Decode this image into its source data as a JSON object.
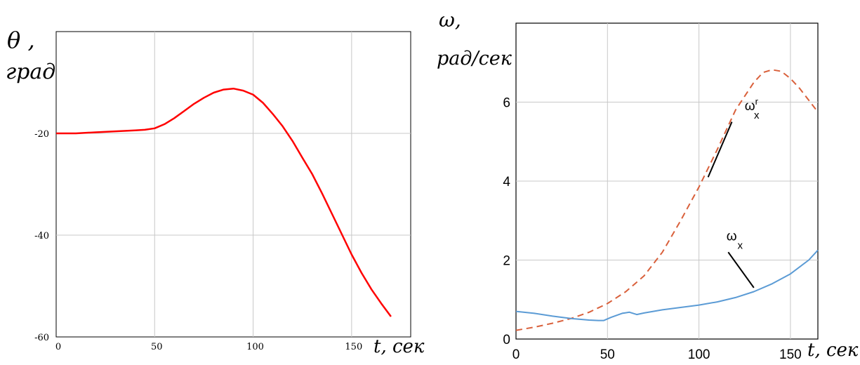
{
  "chart_data": [
    {
      "type": "line",
      "title": "",
      "ylabel_symbol": "θ ,",
      "ylabel_unit": "град",
      "xlabel": "t, сек",
      "xlim": [
        0,
        180
      ],
      "ylim": [
        -60,
        0
      ],
      "xticks": [
        0,
        50,
        100,
        150
      ],
      "xtick_labels": [
        "0",
        "50",
        "100",
        "150"
      ],
      "yticks": [
        -20,
        -40,
        -60
      ],
      "ytick_labels": [
        "-20",
        "-40",
        "-60"
      ],
      "grid": true,
      "legend": "none",
      "series": [
        {
          "color": "#ff0000",
          "style": "solid",
          "x": [
            0,
            10,
            20,
            30,
            40,
            45,
            50,
            55,
            60,
            65,
            70,
            75,
            80,
            85,
            90,
            95,
            100,
            105,
            110,
            115,
            120,
            125,
            130,
            135,
            140,
            145,
            150,
            155,
            160,
            165,
            170
          ],
          "y": [
            -20,
            -20,
            -19.8,
            -19.6,
            -19.4,
            -19.3,
            -19,
            -18.2,
            -17,
            -15.6,
            -14.2,
            -13,
            -12,
            -11.4,
            -11.2,
            -11.6,
            -12.4,
            -14,
            -16.2,
            -18.6,
            -21.5,
            -24.8,
            -28,
            -31.8,
            -35.8,
            -39.8,
            -43.8,
            -47.4,
            -50.6,
            -53.4,
            -56
          ]
        }
      ]
    },
    {
      "type": "line",
      "title": "",
      "ylabel_symbol": "ω,",
      "ylabel_unit": "рад/сек",
      "xlabel": "t, сек",
      "xlim": [
        0,
        165
      ],
      "ylim": [
        0,
        8
      ],
      "xticks": [
        0,
        50,
        100,
        150
      ],
      "xtick_labels": [
        "0",
        "50",
        "100",
        "150"
      ],
      "yticks": [
        0,
        2,
        4,
        6
      ],
      "ytick_labels": [
        "0",
        "2",
        "4",
        "6"
      ],
      "grid": true,
      "legend": "none",
      "annotations": [
        {
          "label": "ω",
          "sub": "x",
          "sup": "r",
          "series": 0
        },
        {
          "label": "ω",
          "sub": "x",
          "sup": "",
          "series": 1
        }
      ],
      "series": [
        {
          "color": "#d9603b",
          "style": "dashed",
          "x": [
            0,
            10,
            20,
            30,
            40,
            50,
            60,
            70,
            80,
            90,
            100,
            110,
            120,
            130,
            135,
            140,
            145,
            150,
            155,
            160,
            165
          ],
          "y": [
            0.22,
            0.3,
            0.4,
            0.52,
            0.68,
            0.9,
            1.2,
            1.6,
            2.2,
            3,
            3.85,
            4.8,
            5.8,
            6.5,
            6.75,
            6.82,
            6.78,
            6.6,
            6.35,
            6.05,
            5.75
          ]
        },
        {
          "color": "#5b9bd5",
          "style": "solid",
          "x": [
            0,
            10,
            20,
            30,
            40,
            45,
            48,
            52,
            58,
            62,
            66,
            70,
            75,
            80,
            90,
            100,
            110,
            120,
            130,
            140,
            150,
            160,
            165
          ],
          "y": [
            0.7,
            0.65,
            0.58,
            0.52,
            0.48,
            0.47,
            0.47,
            0.55,
            0.65,
            0.68,
            0.62,
            0.66,
            0.7,
            0.74,
            0.8,
            0.86,
            0.94,
            1.05,
            1.2,
            1.4,
            1.65,
            2,
            2.25
          ]
        }
      ]
    }
  ]
}
